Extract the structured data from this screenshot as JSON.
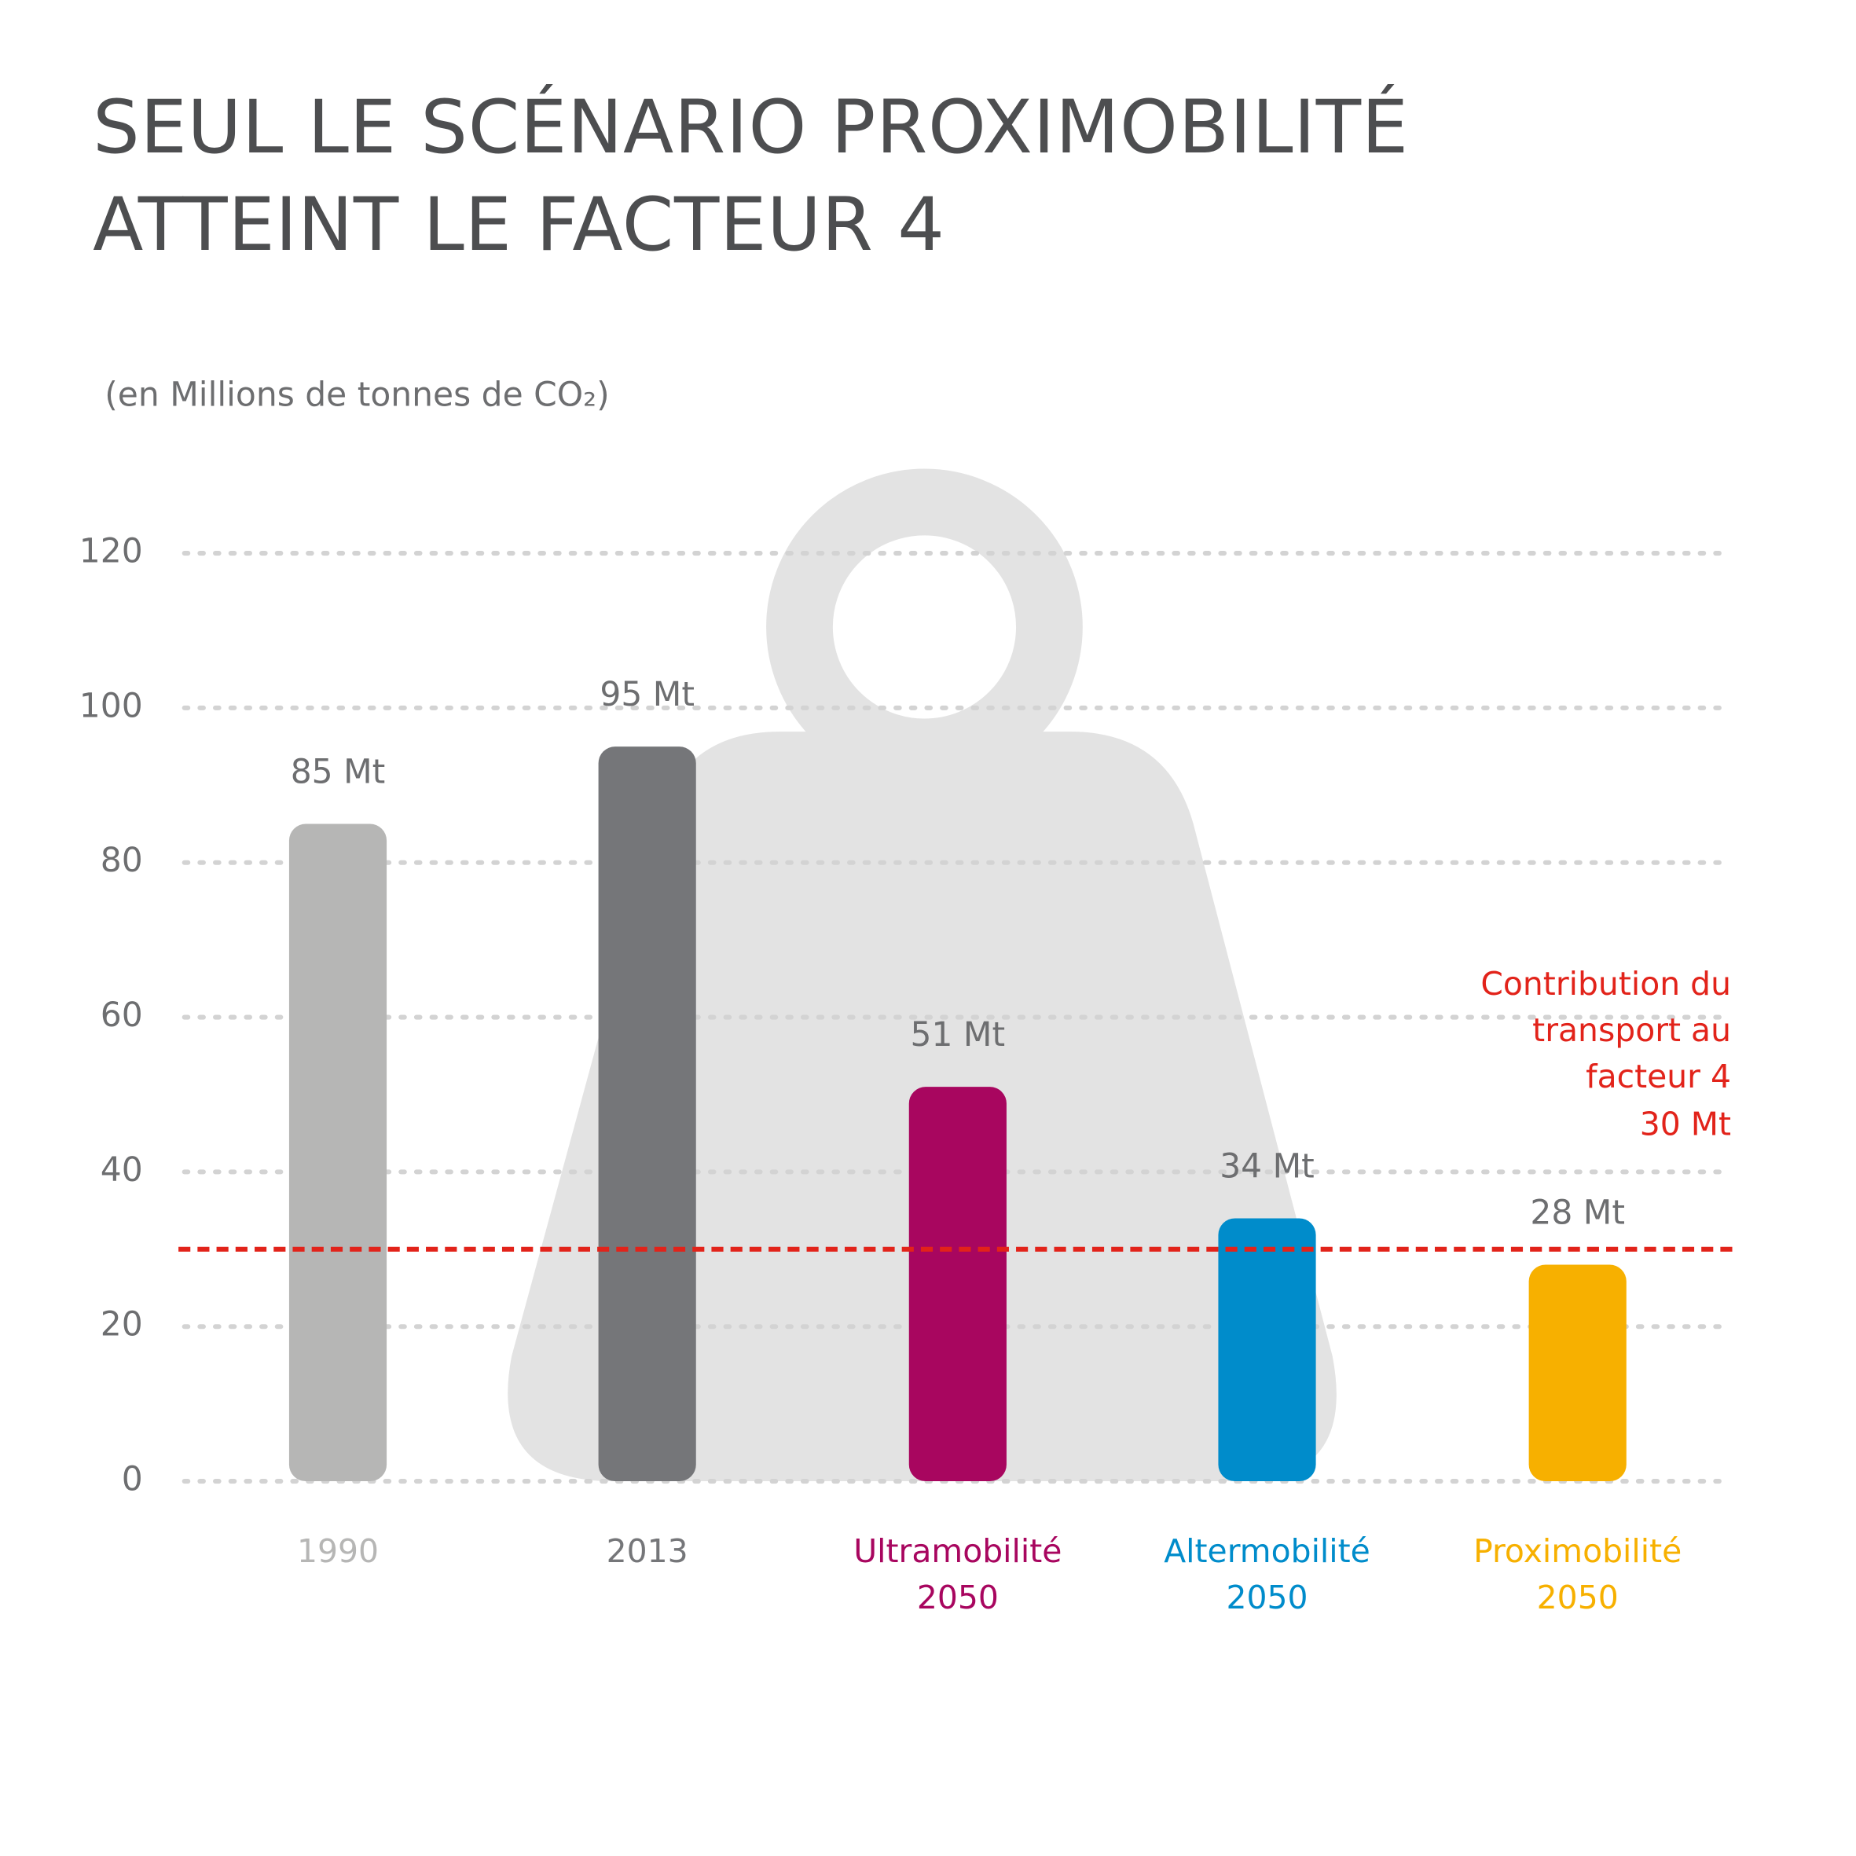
{
  "chart_data": {
    "type": "bar",
    "title": "SEUL LE SCÉNARIO PROXIMOBILITÉ\nATTEINT LE FACTEUR 4",
    "subtitle": "(en Millions de tonnes de CO₂)",
    "categories": [
      "1990",
      "2013",
      "Ultramobilité\n2050",
      "Altermobilité\n2050",
      "Proximobilité\n2050"
    ],
    "values": [
      85,
      95,
      51,
      34,
      28
    ],
    "value_labels": [
      "85 Mt",
      "95 Mt",
      "51 Mt",
      "34 Mt",
      "28 Mt"
    ],
    "colors": [
      "#b6b6b5",
      "#757679",
      "#a8065f",
      "#008ccb",
      "#f7b000"
    ],
    "ylim": [
      0,
      120
    ],
    "yticks": [
      0,
      20,
      40,
      60,
      80,
      100,
      120
    ],
    "grid": true,
    "threshold": {
      "value": 30,
      "label": "30 Mt",
      "text": "Contribution du\ntransport au\nfacteur 4",
      "color": "#e2231a"
    }
  }
}
